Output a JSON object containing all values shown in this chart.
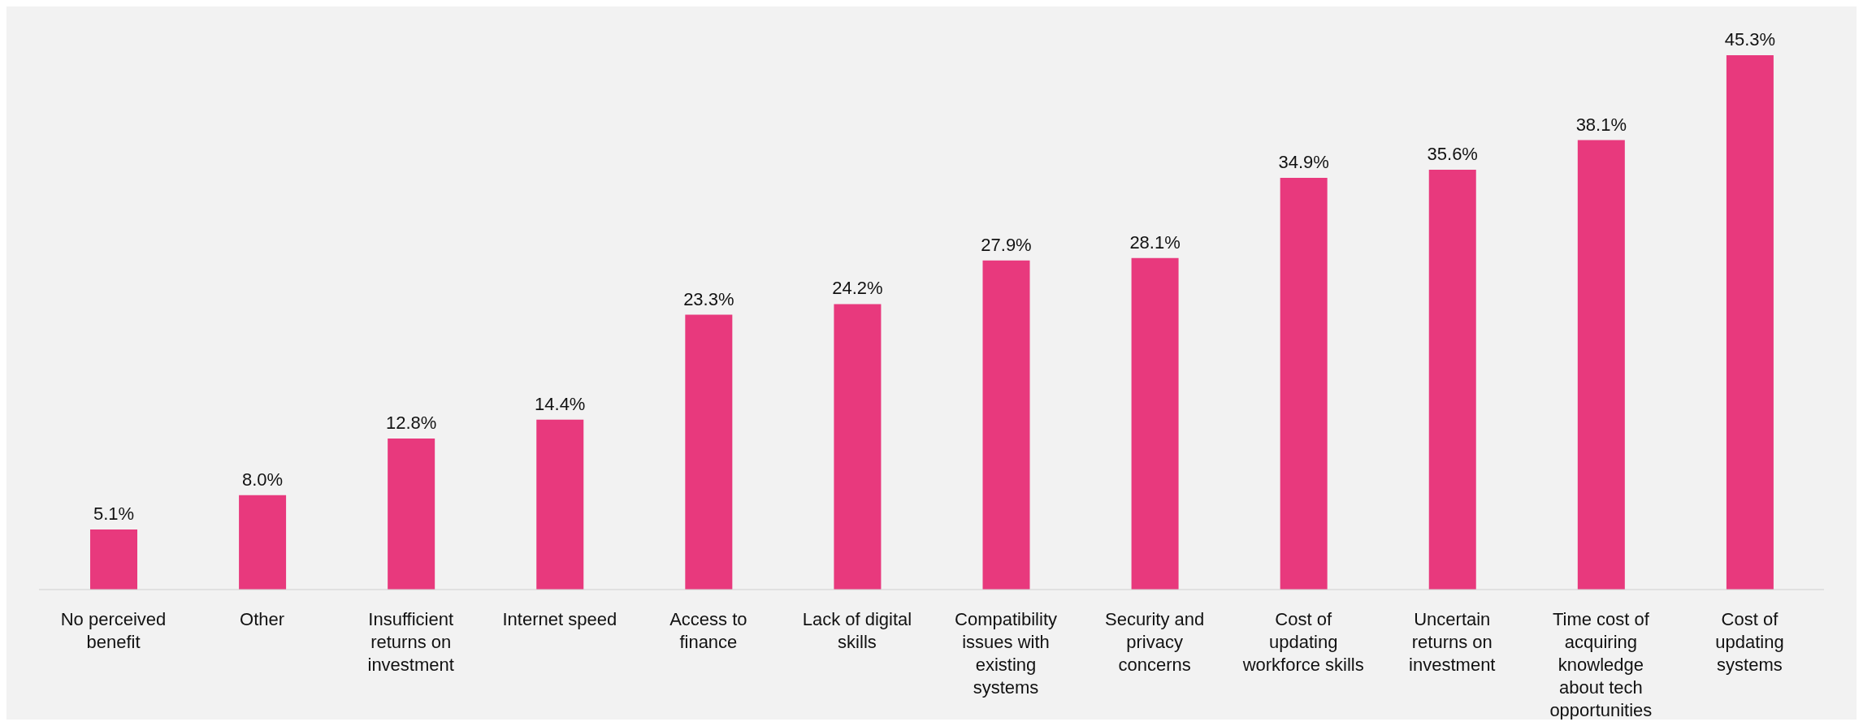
{
  "chart_data": {
    "type": "bar",
    "categories": [
      "No perceived benefit",
      "Other",
      "Insufficient returns on investment",
      "Internet speed",
      "Access to finance",
      "Lack of digital skills",
      "Compatibility issues with existing systems",
      "Security and privacy concerns",
      "Cost of updating workforce skills",
      "Uncertain returns on investment",
      "Time cost of acquiring knowledge about tech opportunities",
      "Cost of updating systems"
    ],
    "values": [
      5.1,
      8.0,
      12.8,
      14.4,
      23.3,
      24.2,
      27.9,
      28.1,
      34.9,
      35.6,
      38.1,
      45.3
    ],
    "value_labels": [
      "5.1%",
      "8.0%",
      "12.8%",
      "14.4%",
      "23.3%",
      "24.2%",
      "27.9%",
      "28.1%",
      "34.9%",
      "35.6%",
      "38.1%",
      "45.3%"
    ],
    "color": "#e8397d",
    "legend": false,
    "grid": false
  }
}
